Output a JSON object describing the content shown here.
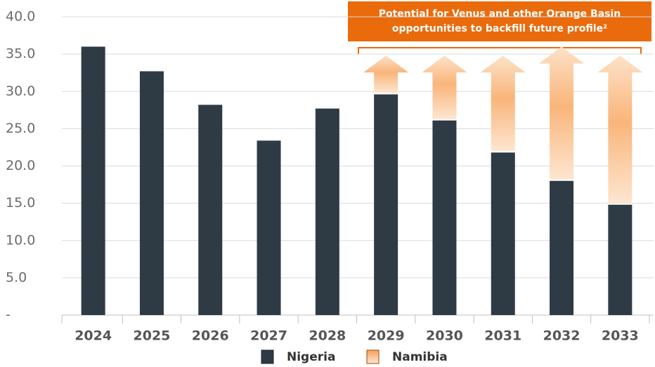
{
  "chart_data": {
    "type": "bar",
    "categories": [
      "2024",
      "2025",
      "2026",
      "2027",
      "2028",
      "2029",
      "2030",
      "2031",
      "2032",
      "2033"
    ],
    "series": [
      {
        "name": "Nigeria",
        "color": "#2e3a44",
        "values": [
          36.0,
          32.7,
          28.2,
          23.4,
          27.7,
          29.6,
          26.1,
          21.8,
          18.0,
          14.8
        ]
      },
      {
        "name": "Namibia",
        "color": "#f7a05a",
        "values": [
          null,
          null,
          null,
          null,
          null,
          5.2,
          8.7,
          13.0,
          18.0,
          20.0
        ]
      }
    ],
    "ylim": [
      0,
      40
    ],
    "yticks": [
      {
        "value": 0,
        "label": "-"
      },
      {
        "value": 5,
        "label": "5.0"
      },
      {
        "value": 10,
        "label": "10.0"
      },
      {
        "value": 15,
        "label": "15.0"
      },
      {
        "value": 20,
        "label": "20.0"
      },
      {
        "value": 25,
        "label": "25.0"
      },
      {
        "value": 30,
        "label": "30.0"
      },
      {
        "value": 35,
        "label": "35.0"
      },
      {
        "value": 40,
        "label": "40.0"
      }
    ],
    "grid": true,
    "annotation": [
      "Potential for Venus and other Orange Basin",
      "opportunities to backfill future profile²"
    ],
    "legend": "bottom"
  }
}
